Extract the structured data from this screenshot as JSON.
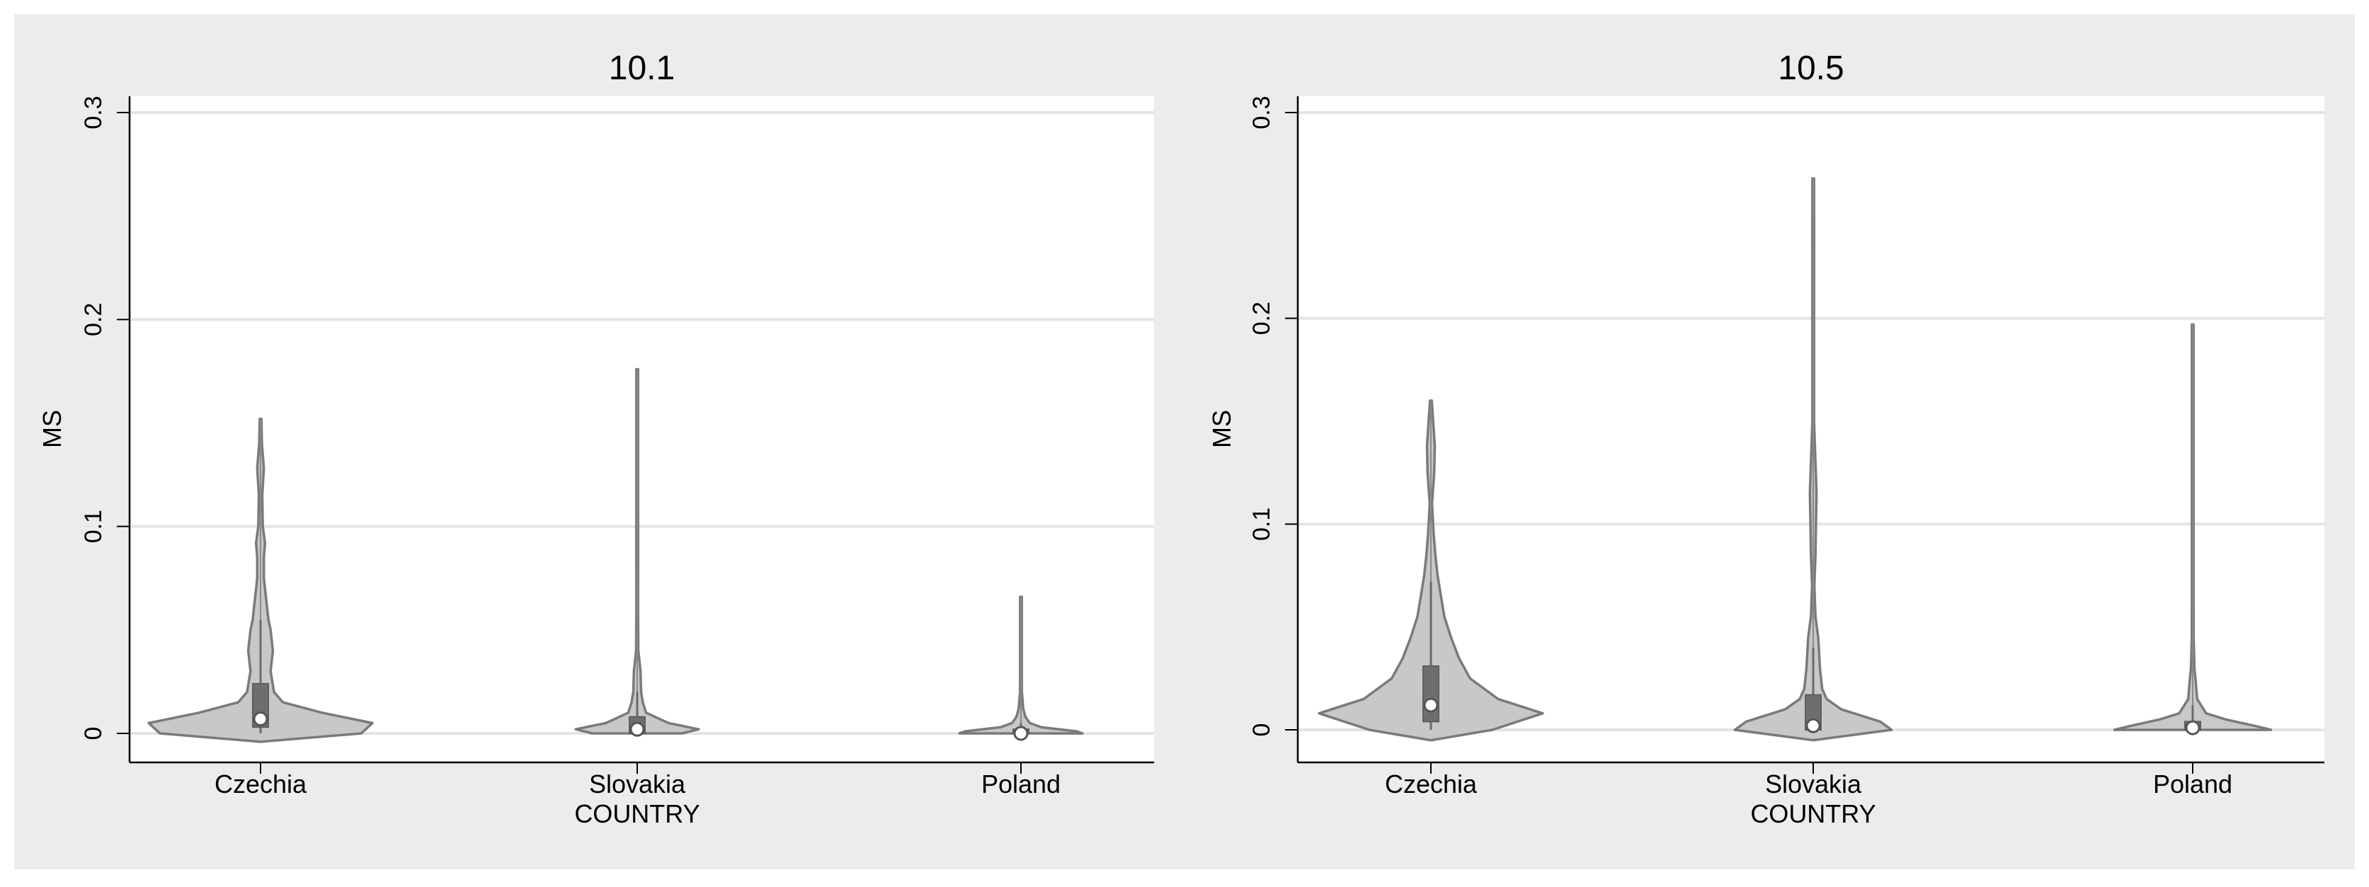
{
  "chart_data": [
    {
      "type": "violin",
      "title": "10.1",
      "xlabel": "COUNTRY",
      "ylabel": "MS",
      "ylim": [
        0,
        0.3
      ],
      "yticks": [
        0,
        0.1,
        0.2,
        0.3
      ],
      "ytick_labels": [
        "0",
        "0.1",
        "0.2",
        "0.3"
      ],
      "grid": true,
      "categories": [
        "Czechia",
        "Slovakia",
        "Poland"
      ],
      "series": [
        {
          "name": "Czechia",
          "min": 0.0,
          "max": 0.152,
          "q1": 0.003,
          "median": 0.007,
          "q3": 0.024,
          "whisker_low": 0.0,
          "whisker_high": 0.055,
          "density": [
            [
              -0.004,
              0.0
            ],
            [
              0.0,
              0.9
            ],
            [
              0.005,
              1.0
            ],
            [
              0.01,
              0.55
            ],
            [
              0.015,
              0.2
            ],
            [
              0.02,
              0.12
            ],
            [
              0.03,
              0.09
            ],
            [
              0.04,
              0.11
            ],
            [
              0.05,
              0.09
            ],
            [
              0.055,
              0.07
            ],
            [
              0.065,
              0.05
            ],
            [
              0.075,
              0.03
            ],
            [
              0.085,
              0.03
            ],
            [
              0.092,
              0.04
            ],
            [
              0.1,
              0.02
            ],
            [
              0.115,
              0.015
            ],
            [
              0.128,
              0.03
            ],
            [
              0.14,
              0.012
            ],
            [
              0.152,
              0.0
            ]
          ]
        },
        {
          "name": "Slovakia",
          "min": 0.0,
          "max": 0.176,
          "q1": 0.0,
          "median": 0.002,
          "q3": 0.008,
          "whisker_low": 0.0,
          "whisker_high": 0.02,
          "density": [
            [
              0.0,
              0.4
            ],
            [
              0.002,
              0.55
            ],
            [
              0.005,
              0.28
            ],
            [
              0.01,
              0.08
            ],
            [
              0.015,
              0.05
            ],
            [
              0.02,
              0.035
            ],
            [
              0.03,
              0.03
            ],
            [
              0.04,
              0.01
            ],
            [
              0.06,
              0.006
            ],
            [
              0.09,
              0.008
            ],
            [
              0.12,
              0.005
            ],
            [
              0.15,
              0.005
            ],
            [
              0.176,
              0.0
            ]
          ]
        },
        {
          "name": "Poland",
          "min": 0.0,
          "max": 0.066,
          "q1": 0.0,
          "median": 0.0,
          "q3": 0.002,
          "whisker_low": 0.0,
          "whisker_high": 0.005,
          "density": [
            [
              0.0,
              0.55
            ],
            [
              0.001,
              0.5
            ],
            [
              0.003,
              0.18
            ],
            [
              0.005,
              0.08
            ],
            [
              0.008,
              0.04
            ],
            [
              0.012,
              0.02
            ],
            [
              0.02,
              0.008
            ],
            [
              0.035,
              0.006
            ],
            [
              0.05,
              0.004
            ],
            [
              0.066,
              0.0
            ]
          ]
        }
      ]
    },
    {
      "type": "violin",
      "title": "10.5",
      "xlabel": "COUNTRY",
      "ylabel": "MS",
      "ylim": [
        0,
        0.3
      ],
      "yticks": [
        0,
        0.1,
        0.2,
        0.3
      ],
      "ytick_labels": [
        "0",
        "0.1",
        "0.2",
        "0.3"
      ],
      "grid": true,
      "categories": [
        "Czechia",
        "Slovakia",
        "Poland"
      ],
      "series": [
        {
          "name": "Czechia",
          "min": 0.0,
          "max": 0.16,
          "q1": 0.004,
          "median": 0.012,
          "q3": 0.031,
          "whisker_low": 0.0,
          "whisker_high": 0.072,
          "density": [
            [
              -0.005,
              0.0
            ],
            [
              0.0,
              0.55
            ],
            [
              0.008,
              1.0
            ],
            [
              0.015,
              0.6
            ],
            [
              0.025,
              0.35
            ],
            [
              0.035,
              0.25
            ],
            [
              0.045,
              0.18
            ],
            [
              0.055,
              0.12
            ],
            [
              0.065,
              0.09
            ],
            [
              0.075,
              0.06
            ],
            [
              0.085,
              0.04
            ],
            [
              0.095,
              0.025
            ],
            [
              0.11,
              0.01
            ],
            [
              0.125,
              0.03
            ],
            [
              0.138,
              0.035
            ],
            [
              0.15,
              0.02
            ],
            [
              0.16,
              0.0
            ]
          ]
        },
        {
          "name": "Slovakia",
          "min": 0.0,
          "max": 0.268,
          "q1": 0.0,
          "median": 0.002,
          "q3": 0.017,
          "whisker_low": 0.0,
          "whisker_high": 0.04,
          "density": [
            [
              -0.005,
              0.0
            ],
            [
              0.0,
              0.7
            ],
            [
              0.004,
              0.6
            ],
            [
              0.01,
              0.25
            ],
            [
              0.015,
              0.12
            ],
            [
              0.02,
              0.08
            ],
            [
              0.03,
              0.06
            ],
            [
              0.045,
              0.045
            ],
            [
              0.055,
              0.02
            ],
            [
              0.07,
              0.01
            ],
            [
              0.085,
              0.02
            ],
            [
              0.1,
              0.025
            ],
            [
              0.115,
              0.03
            ],
            [
              0.13,
              0.02
            ],
            [
              0.15,
              0.005
            ],
            [
              0.2,
              0.003
            ],
            [
              0.245,
              0.008
            ],
            [
              0.255,
              0.004
            ],
            [
              0.268,
              0.0
            ]
          ]
        },
        {
          "name": "Poland",
          "min": 0.0,
          "max": 0.197,
          "q1": 0.0,
          "median": 0.001,
          "q3": 0.004,
          "whisker_low": 0.0,
          "whisker_high": 0.012,
          "density": [
            [
              0.0,
              0.7
            ],
            [
              0.002,
              0.55
            ],
            [
              0.005,
              0.3
            ],
            [
              0.008,
              0.12
            ],
            [
              0.015,
              0.04
            ],
            [
              0.025,
              0.025
            ],
            [
              0.03,
              0.015
            ],
            [
              0.045,
              0.008
            ],
            [
              0.06,
              0.005
            ],
            [
              0.1,
              0.004
            ],
            [
              0.15,
              0.005
            ],
            [
              0.197,
              0.0
            ]
          ]
        }
      ]
    }
  ]
}
